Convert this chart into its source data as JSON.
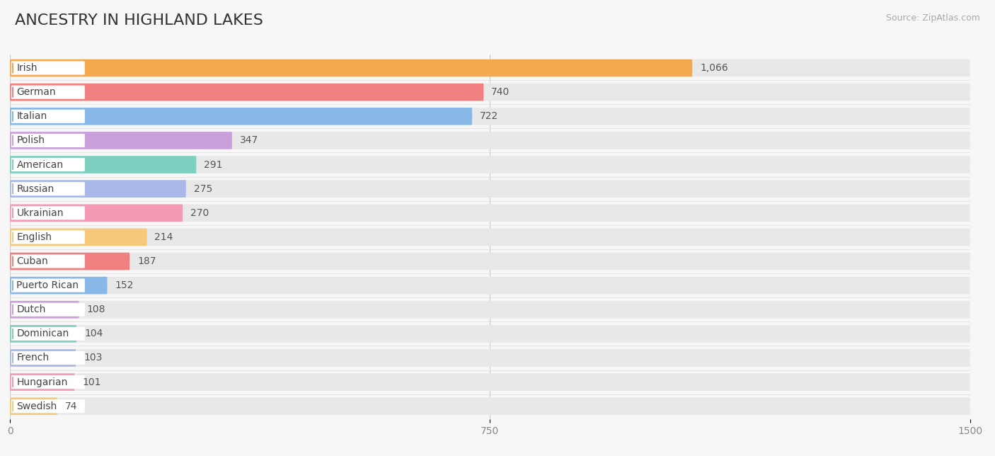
{
  "title": "ANCESTRY IN HIGHLAND LAKES",
  "source": "Source: ZipAtlas.com",
  "categories": [
    "Irish",
    "German",
    "Italian",
    "Polish",
    "American",
    "Russian",
    "Ukrainian",
    "English",
    "Cuban",
    "Puerto Rican",
    "Dutch",
    "Dominican",
    "French",
    "Hungarian",
    "Swedish"
  ],
  "values": [
    1066,
    740,
    722,
    347,
    291,
    275,
    270,
    214,
    187,
    152,
    108,
    104,
    103,
    101,
    74
  ],
  "bar_colors": [
    "#f5a94e",
    "#f08080",
    "#87b8e8",
    "#c9a0dc",
    "#7dcfbf",
    "#a9b8e8",
    "#f59ab5",
    "#f5c87a",
    "#f08080",
    "#87b8e8",
    "#c9a0dc",
    "#7dcfbf",
    "#a9b8e8",
    "#f59ab5",
    "#f5c87a"
  ],
  "background_color": "#f7f7f7",
  "bar_background_color": "#e8e8e8",
  "xlim": [
    0,
    1500
  ],
  "xticks": [
    0,
    750,
    1500
  ],
  "title_fontsize": 16,
  "label_fontsize": 10,
  "value_fontsize": 10
}
